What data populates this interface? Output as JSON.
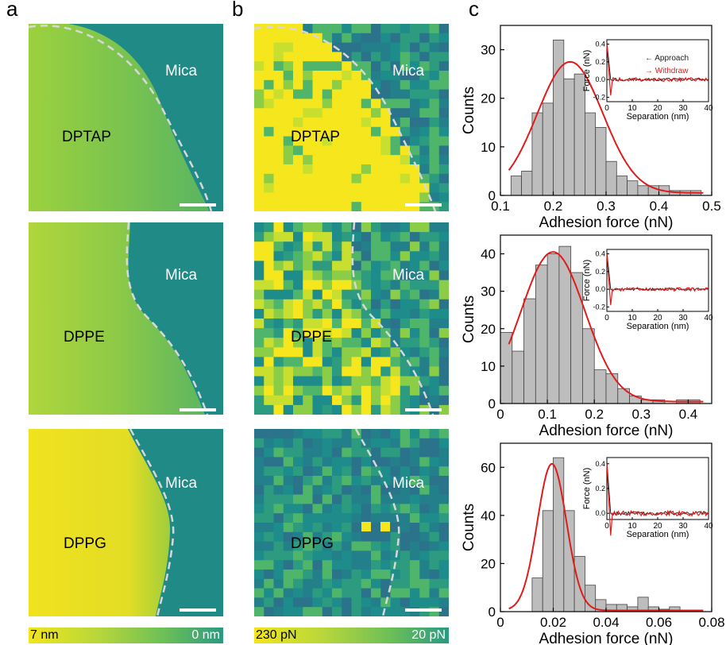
{
  "panel_labels": [
    "a",
    "b",
    "c"
  ],
  "rows": [
    {
      "lipid": "DPTAP",
      "substrate": "Mica"
    },
    {
      "lipid": "DPPE",
      "substrate": "Mica"
    },
    {
      "lipid": "DPPG",
      "substrate": "Mica"
    }
  ],
  "colorbar_height": {
    "high": "7 nm",
    "low": "0 nm"
  },
  "colorbar_force": {
    "high": "230 pN",
    "low": "20 pN"
  },
  "colors": {
    "yellow": "#f5e61d",
    "teal": "#1e8c8a",
    "fit": "#e01b1b",
    "bar": "#bdbdbd",
    "dashed": "#d8d8d8"
  },
  "chart_data": [
    {
      "type": "bar",
      "xlabel": "Adhesion force (nN)",
      "ylabel": "Counts",
      "xlim": [
        0.1,
        0.5
      ],
      "ylim": [
        0,
        35
      ],
      "xticks": [
        "0.1",
        "0.2",
        "0.3",
        "0.4",
        "0.5"
      ],
      "yticks": [
        "0",
        "10",
        "20",
        "30"
      ],
      "bin_width": 0.02,
      "bin_centers": [
        0.13,
        0.15,
        0.17,
        0.19,
        0.21,
        0.23,
        0.25,
        0.27,
        0.29,
        0.31,
        0.33,
        0.35,
        0.37,
        0.39,
        0.41,
        0.43,
        0.45,
        0.47
      ],
      "values": [
        4,
        5,
        17,
        19,
        32,
        24,
        25,
        17,
        14,
        7,
        4,
        3,
        2,
        2,
        2,
        1,
        1,
        1
      ],
      "fit": {
        "mean": 0.232,
        "sigma": 0.062,
        "peak": 27
      },
      "inset": {
        "xlabel": "Separation (nm)",
        "ylabel": "Force (nN)",
        "xticks": [
          "0",
          "10",
          "20",
          "30",
          "40"
        ],
        "yticks": [
          "0.4",
          "0.2",
          "0.0",
          "-0.2"
        ],
        "ylim": [
          -0.25,
          0.45
        ],
        "legend": [
          {
            "label": "Approach",
            "color": "#222222"
          },
          {
            "label": "Withdraw",
            "color": "#e01b1b"
          }
        ]
      }
    },
    {
      "type": "bar",
      "xlabel": "Adhesion force (nN)",
      "ylabel": "Counts",
      "xlim": [
        0,
        0.45
      ],
      "ylim": [
        0,
        45
      ],
      "xticks": [
        "0",
        "0.1",
        "0.2",
        "0.3",
        "0.4"
      ],
      "yticks": [
        "0",
        "10",
        "20",
        "30",
        "40"
      ],
      "bin_width": 0.025,
      "bin_centers": [
        0.0125,
        0.0375,
        0.0625,
        0.0875,
        0.1125,
        0.1375,
        0.1625,
        0.1875,
        0.2125,
        0.2375,
        0.2625,
        0.2875,
        0.3125,
        0.3375,
        0.3625,
        0.3875,
        0.4125
      ],
      "values": [
        19,
        14,
        28,
        37,
        40,
        42,
        35,
        20,
        9,
        8,
        4,
        2,
        1,
        1,
        0,
        1,
        1
      ],
      "fit": {
        "mean": 0.112,
        "sigma": 0.068,
        "peak": 40
      },
      "inset": {
        "xlabel": "Separation (nm)",
        "ylabel": "Force (nN)",
        "xticks": [
          "0",
          "10",
          "20",
          "30",
          "40"
        ],
        "yticks": [
          "0.4",
          "0.2",
          "0.0",
          "-0.2"
        ],
        "ylim": [
          -0.25,
          0.45
        ],
        "legend": []
      }
    },
    {
      "type": "bar",
      "xlabel": "Adhesion force (nN)",
      "ylabel": "Counts",
      "xlim": [
        0,
        0.08
      ],
      "ylim": [
        0,
        70
      ],
      "xticks": [
        "0",
        "0.02",
        "0.04",
        "0.06",
        "0.08"
      ],
      "yticks": [
        "0",
        "20",
        "40",
        "60"
      ],
      "bin_width": 0.004,
      "bin_centers": [
        0.014,
        0.018,
        0.022,
        0.026,
        0.03,
        0.034,
        0.038,
        0.042,
        0.046,
        0.05,
        0.054,
        0.058,
        0.062,
        0.066
      ],
      "values": [
        14,
        42,
        64,
        42,
        23,
        11,
        5,
        3,
        3,
        2,
        6,
        2,
        1,
        2
      ],
      "fit": {
        "mean": 0.0195,
        "sigma": 0.0055,
        "peak": 61
      },
      "inset": {
        "xlabel": "Separation (nm)",
        "ylabel": "Force (nN)",
        "xticks": [
          "0",
          "10",
          "20",
          "30",
          "40"
        ],
        "yticks": [
          "0.4",
          "0.2",
          "0.0"
        ],
        "ylim": [
          -0.05,
          0.45
        ],
        "legend": []
      }
    }
  ]
}
